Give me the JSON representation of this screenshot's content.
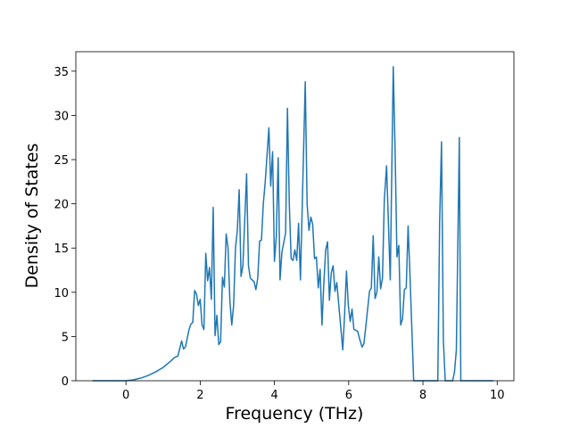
{
  "chart_data": {
    "type": "line",
    "xlabel": "Frequency (THz)",
    "ylabel": "Density of States",
    "color": "#1f77b4",
    "xlim": [
      -1.35,
      10.45
    ],
    "ylim": [
      0,
      37.2
    ],
    "xticks": [
      0,
      2,
      4,
      6,
      8,
      10
    ],
    "yticks": [
      0,
      5,
      10,
      15,
      20,
      25,
      30,
      35
    ],
    "grid": false,
    "x": [
      -0.9,
      0,
      0.2,
      0.4,
      0.6,
      0.8,
      1.0,
      1.2,
      1.3,
      1.4,
      1.5,
      1.55,
      1.6,
      1.7,
      1.75,
      1.8,
      1.85,
      1.9,
      1.95,
      2.0,
      2.05,
      2.1,
      2.15,
      2.2,
      2.25,
      2.3,
      2.35,
      2.4,
      2.45,
      2.5,
      2.55,
      2.6,
      2.65,
      2.7,
      2.75,
      2.8,
      2.85,
      2.9,
      2.95,
      3.0,
      3.05,
      3.1,
      3.15,
      3.25,
      3.3,
      3.35,
      3.45,
      3.5,
      3.55,
      3.6,
      3.65,
      3.7,
      3.75,
      3.85,
      3.9,
      3.95,
      4.0,
      4.05,
      4.1,
      4.15,
      4.2,
      4.3,
      4.35,
      4.4,
      4.45,
      4.5,
      4.55,
      4.6,
      4.65,
      4.7,
      4.75,
      4.83,
      4.88,
      4.93,
      4.98,
      5.03,
      5.08,
      5.13,
      5.18,
      5.23,
      5.28,
      5.33,
      5.38,
      5.43,
      5.48,
      5.53,
      5.58,
      5.63,
      5.68,
      5.73,
      5.84,
      5.89,
      5.94,
      5.99,
      6.04,
      6.09,
      6.14,
      6.24,
      6.29,
      6.36,
      6.41,
      6.46,
      6.56,
      6.61,
      6.66,
      6.71,
      6.76,
      6.81,
      6.86,
      6.91,
      6.96,
      7.02,
      7.07,
      7.12,
      7.2,
      7.25,
      7.3,
      7.35,
      7.4,
      7.45,
      7.5,
      7.55,
      7.6,
      7.65,
      7.75,
      8.4,
      8.45,
      8.5,
      8.55,
      8.6,
      8.8,
      8.85,
      8.9,
      8.98,
      9.02,
      9.9
    ],
    "values": [
      0,
      0,
      0.1,
      0.3,
      0.6,
      1.0,
      1.5,
      2.2,
      2.6,
      2.8,
      4.5,
      3.6,
      3.8,
      5.8,
      6.4,
      6.6,
      10.2,
      9.8,
      8.5,
      9.2,
      6.3,
      5.8,
      14.4,
      11.3,
      12.8,
      9.2,
      19.6,
      5.1,
      7.4,
      4.1,
      4.4,
      11.7,
      10.6,
      16.6,
      15,
      9,
      6.3,
      8.5,
      15,
      17,
      21.6,
      11.8,
      13,
      23.4,
      13,
      11.6,
      11.2,
      10.3,
      11.6,
      15.8,
      15.9,
      20,
      22.4,
      28.6,
      22,
      25.9,
      13.5,
      16.3,
      25.2,
      11.4,
      14.5,
      16.7,
      30.8,
      20,
      13.8,
      13.6,
      14.8,
      13.6,
      17.8,
      11.4,
      20,
      33.8,
      20,
      17,
      18.5,
      17.7,
      13.8,
      14,
      10.5,
      12.6,
      6.3,
      11,
      14.8,
      15.7,
      9.1,
      12.2,
      13,
      10.1,
      11.1,
      8.7,
      3.5,
      7.5,
      12.4,
      8.5,
      6.7,
      8.1,
      5.8,
      5.6,
      4.8,
      3.8,
      4.2,
      6.1,
      10.1,
      10.5,
      16.4,
      9.3,
      10,
      14,
      10.4,
      11.6,
      20.5,
      24.3,
      17.8,
      11.4,
      35.5,
      26,
      14,
      15.3,
      6.3,
      7,
      10.3,
      10.5,
      17.5,
      12,
      0,
      0,
      18,
      27,
      4.6,
      0,
      0,
      1,
      3.5,
      27.5,
      0,
      0
    ]
  }
}
